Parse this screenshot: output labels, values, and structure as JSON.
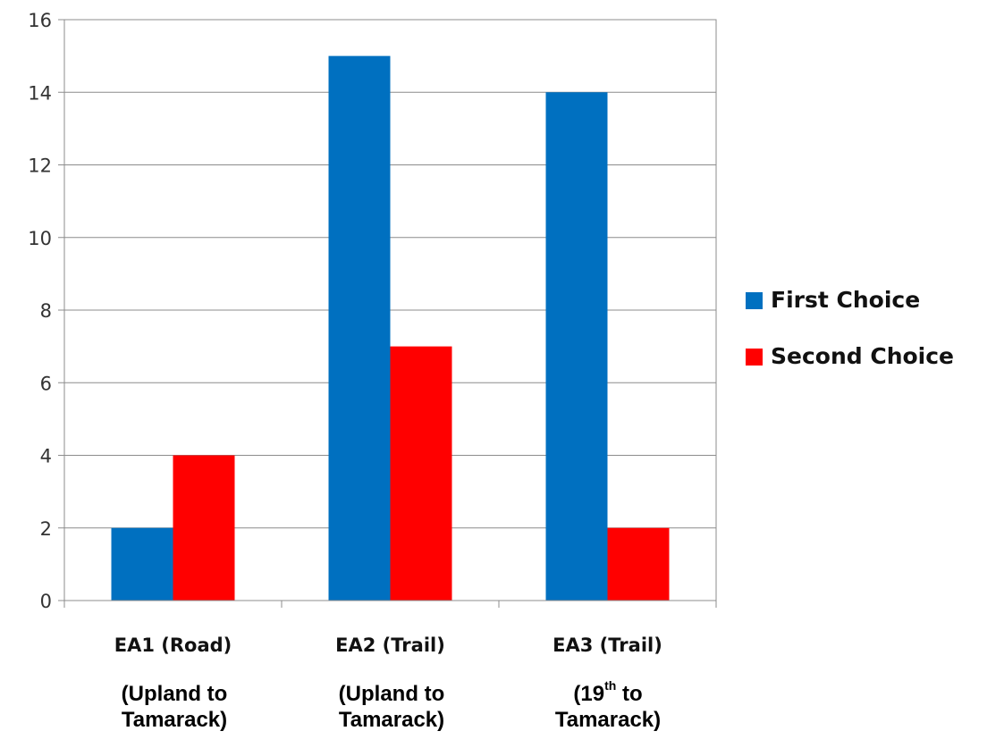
{
  "chart_data": {
    "type": "bar",
    "categories": [
      "EA1 (Road)",
      "EA2 (Trail)",
      "EA3 (Trail)"
    ],
    "category_sublabels": [
      {
        "line1": "(Upland to",
        "line2": "Tamarack)"
      },
      {
        "line1": "(Upland to",
        "line2": "Tamarack)"
      },
      {
        "line1": "(19",
        "line1_sup": "th",
        "line1_after": " to",
        "line2": "Tamarack)"
      }
    ],
    "series": [
      {
        "name": "First Choice",
        "values": [
          2,
          15,
          14
        ],
        "color": "#0070C0"
      },
      {
        "name": "Second Choice",
        "values": [
          4,
          7,
          2
        ],
        "color": "#FF0000"
      }
    ],
    "ylim": [
      0,
      16
    ],
    "yticks": [
      0,
      2,
      4,
      6,
      8,
      10,
      12,
      14,
      16
    ],
    "grid": true,
    "legend_position": "right",
    "title": "",
    "xlabel": "",
    "ylabel": ""
  }
}
